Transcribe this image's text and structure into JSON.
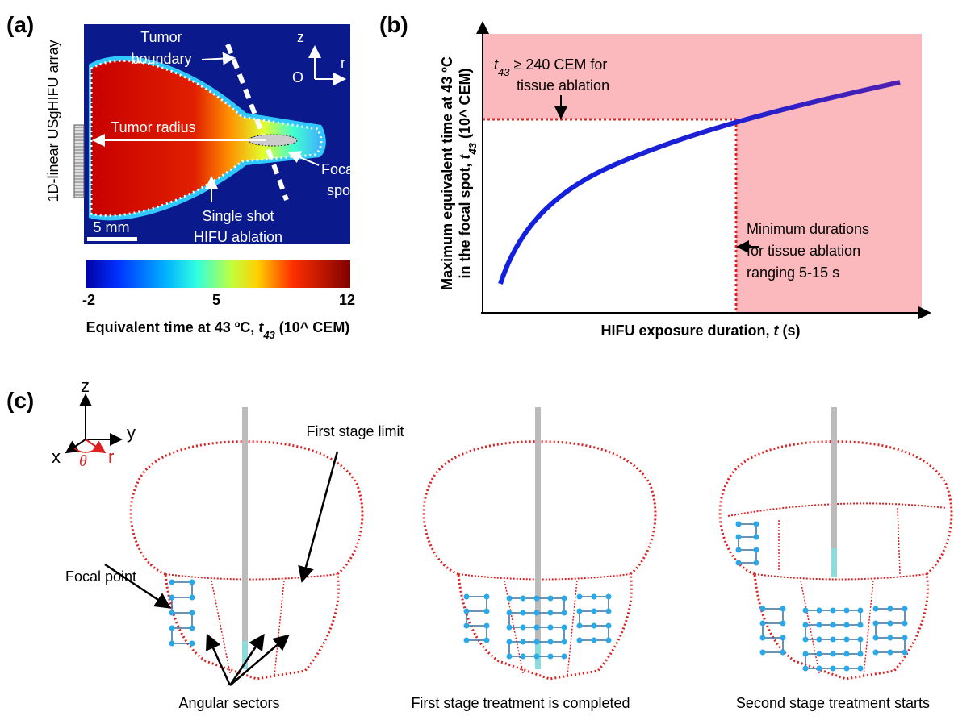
{
  "panel_a": {
    "label": "(a)",
    "array_label": "1D-linear USgHIFU array",
    "tumor_boundary": [
      "Tumor",
      "boundary"
    ],
    "axis_z": "z",
    "axis_r": "r",
    "axis_origin": "O",
    "tumor_radius": "Tumor radius",
    "focal_spot": [
      "Focal",
      "spot"
    ],
    "single_shot": [
      "Single shot",
      "HIFU ablation"
    ],
    "scale_bar": "5 mm",
    "colorbar_ticks": [
      "-2",
      "5",
      "12"
    ],
    "colorbar_title": {
      "text": "Equivalent time at 43 ºC, ",
      "var": "t",
      "sub": "43",
      "unit": " (10^ CEM)"
    }
  },
  "panel_b": {
    "label": "(b)",
    "threshold": {
      "var": "t",
      "sub": "43",
      "text": " ≥ 240 CEM for",
      "line2": "tissue ablation"
    },
    "minimum": [
      "Minimum durations",
      "for tissue ablation",
      "ranging 5-15 s"
    ],
    "y_label": {
      "line1": "Maximum equivalent time at 43 ºC",
      "line2": "in the focal spot, ",
      "var": "t",
      "sub": "43",
      "unit": " (10^ CEM)"
    },
    "x_label": {
      "text": "HIFU exposure duration, ",
      "var": "t",
      "unit": " (s)"
    }
  },
  "panel_c": {
    "label": "(c)",
    "axis_z": "z",
    "axis_y": "y",
    "axis_x": "x",
    "axis_r": "r",
    "axis_theta": "θ",
    "first_stage_limit": "First stage limit",
    "focal_point": "Focal point",
    "captions": [
      "Angular sectors",
      "First stage treatment is completed",
      "Second stage treatment starts"
    ]
  }
}
